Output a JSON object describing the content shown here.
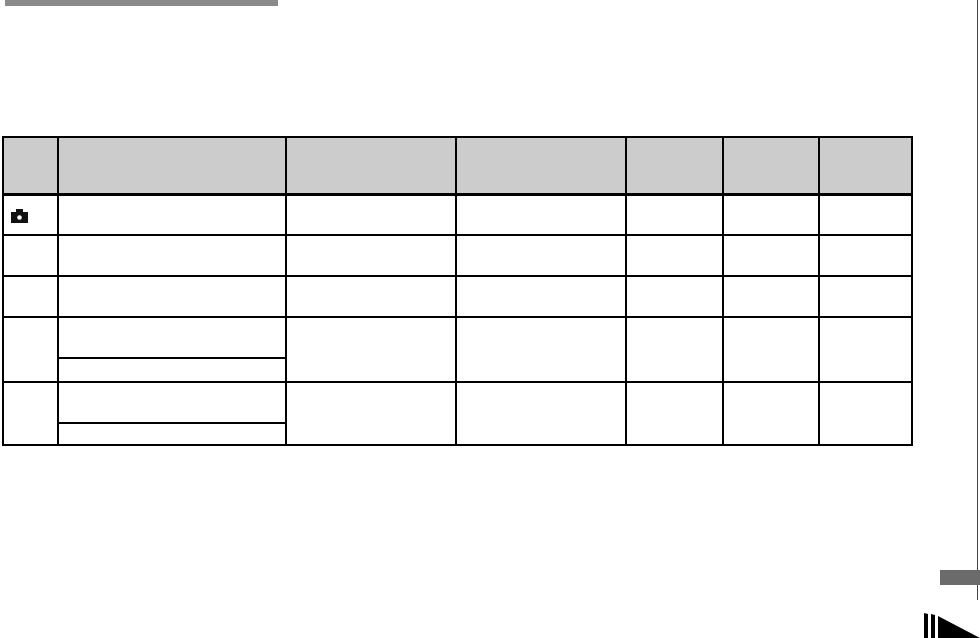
{
  "page": {
    "header_bar_color": "#8a8a8a",
    "side_tab_color": "#6b6b6b",
    "table_header_color": "#cccccc"
  },
  "table": {
    "columns": 7,
    "rows": [
      {
        "icon": "camera-icon"
      },
      {},
      {},
      {
        "sub_rows": 2
      },
      {
        "sub_rows": 2
      }
    ]
  },
  "footer": {
    "icon": "continue-arrow-icon"
  }
}
